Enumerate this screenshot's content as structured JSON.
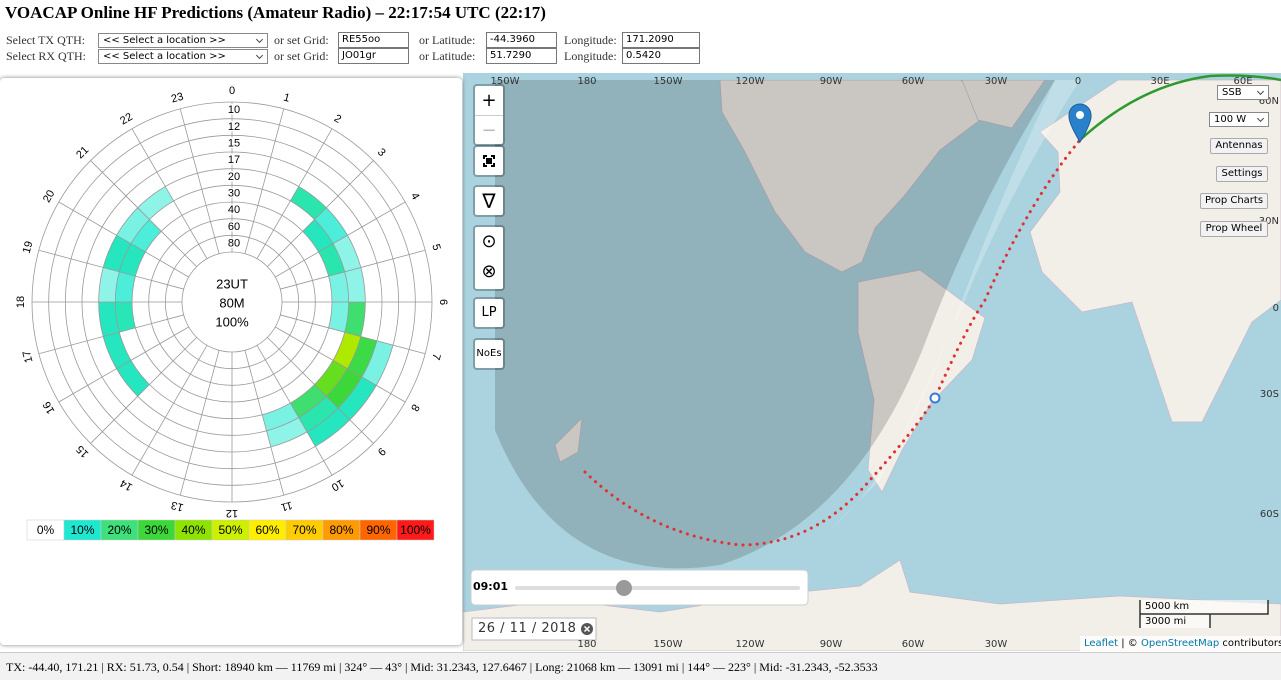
{
  "header": {
    "title": "VOACAP Online HF Predictions (Amateur Radio) – 22:17:54 UTC (22:17)",
    "tx": {
      "label": "Select TX QTH:",
      "location": "<< Select a location >>",
      "grid_label": "or set Grid:",
      "grid": "RE55oo",
      "lat_label": "or Latitude:",
      "lat": "-44.3960",
      "lon_label": "Longitude:",
      "lon": "171.2090"
    },
    "rx": {
      "label": "Select RX QTH:",
      "location": "<< Select a location >>",
      "grid_label": "or set Grid:",
      "grid": "JO01gr",
      "lat_label": "or Latitude:",
      "lat": "51.7290",
      "lon_label": "Longitude:",
      "lon": "0.5420"
    }
  },
  "chart_data": {
    "type": "polar-heatmap",
    "hours": [
      0,
      1,
      2,
      3,
      4,
      5,
      6,
      7,
      8,
      9,
      10,
      11,
      12,
      13,
      14,
      15,
      16,
      17,
      18,
      19,
      20,
      21,
      22,
      23
    ],
    "bands": [
      10,
      12,
      15,
      17,
      20,
      30,
      40,
      60,
      80
    ],
    "center_labels": [
      "23UT",
      "80M",
      "100%"
    ],
    "cells": [
      {
        "hour": 2,
        "band": 20,
        "value": 14
      },
      {
        "hour": 3,
        "band": 20,
        "value": 8
      },
      {
        "hour": 3,
        "band": 30,
        "value": 12
      },
      {
        "hour": 4,
        "band": 30,
        "value": 14
      },
      {
        "hour": 4,
        "band": 20,
        "value": 5
      },
      {
        "hour": 5,
        "band": 30,
        "value": 6
      },
      {
        "hour": 5,
        "band": 20,
        "value": 5
      },
      {
        "hour": 6,
        "band": 20,
        "value": 22
      },
      {
        "hour": 6,
        "band": 30,
        "value": 6
      },
      {
        "hour": 7,
        "band": 20,
        "value": 45
      },
      {
        "hour": 7,
        "band": 17,
        "value": 28
      },
      {
        "hour": 7,
        "band": 15,
        "value": 6
      },
      {
        "hour": 8,
        "band": 20,
        "value": 35
      },
      {
        "hour": 8,
        "band": 17,
        "value": 30
      },
      {
        "hour": 8,
        "band": 15,
        "value": 12
      },
      {
        "hour": 9,
        "band": 20,
        "value": 22
      },
      {
        "hour": 9,
        "band": 17,
        "value": 14
      },
      {
        "hour": 9,
        "band": 15,
        "value": 12
      },
      {
        "hour": 10,
        "band": 20,
        "value": 6
      },
      {
        "hour": 10,
        "band": 17,
        "value": 5
      },
      {
        "hour": 15,
        "band": 20,
        "value": 12
      },
      {
        "hour": 16,
        "band": 20,
        "value": 12
      },
      {
        "hour": 17,
        "band": 20,
        "value": 12
      },
      {
        "hour": 17,
        "band": 30,
        "value": 13
      },
      {
        "hour": 18,
        "band": 20,
        "value": 5
      },
      {
        "hour": 18,
        "band": 30,
        "value": 8
      },
      {
        "hour": 19,
        "band": 20,
        "value": 12
      },
      {
        "hour": 19,
        "band": 30,
        "value": 12
      },
      {
        "hour": 20,
        "band": 20,
        "value": 6
      },
      {
        "hour": 20,
        "band": 30,
        "value": 8
      },
      {
        "hour": 21,
        "band": 20,
        "value": 5
      }
    ],
    "legend": [
      {
        "value": 0,
        "label": "0%",
        "color": "#ffffff"
      },
      {
        "value": 10,
        "label": "10%",
        "color": "#1fe8d0"
      },
      {
        "value": 20,
        "label": "20%",
        "color": "#3ee07c"
      },
      {
        "value": 30,
        "label": "30%",
        "color": "#3cd83a"
      },
      {
        "value": 40,
        "label": "40%",
        "color": "#8ee400"
      },
      {
        "value": 50,
        "label": "50%",
        "color": "#ccf000"
      },
      {
        "value": 60,
        "label": "60%",
        "color": "#ffee00"
      },
      {
        "value": 70,
        "label": "70%",
        "color": "#ffcc00"
      },
      {
        "value": 80,
        "label": "80%",
        "color": "#ff9a00"
      },
      {
        "value": 90,
        "label": "90%",
        "color": "#ff6600"
      },
      {
        "value": 100,
        "label": "100%",
        "color": "#ff1a1a"
      }
    ]
  },
  "map": {
    "lon_top": [
      "150W",
      "180",
      "150W",
      "120W",
      "90W",
      "60W",
      "30W",
      "0",
      "30E",
      "60E"
    ],
    "lon_bottom": [
      "180",
      "150W",
      "120W",
      "90W",
      "60W",
      "30W"
    ],
    "lat": [
      "60N",
      "30N",
      "0",
      "30S",
      "60S"
    ],
    "controls": [
      "+",
      "−",
      "∇",
      "⊙",
      "⊗",
      "LP",
      "NoEs"
    ],
    "mode": "SSB",
    "power": "100 W",
    "buttons": [
      "Antennas",
      "Settings",
      "Prop Charts",
      "Prop Wheel"
    ],
    "time": "09:01",
    "date": "26 / 11 / 2018",
    "scale": [
      "5000 km",
      "3000 mi"
    ],
    "attribution": [
      "Leaflet",
      "| ©",
      "OpenStreetMap",
      "contributors"
    ]
  },
  "status": "TX: -44.40, 171.21 | RX: 51.73, 0.54 | Short: 18940 km — 11769 mi | 324° — 43° | Mid: 31.2343, 127.6467 | Long: 21068 km — 13091 mi | 144° — 223° | Mid: -31.2343, -52.3533"
}
